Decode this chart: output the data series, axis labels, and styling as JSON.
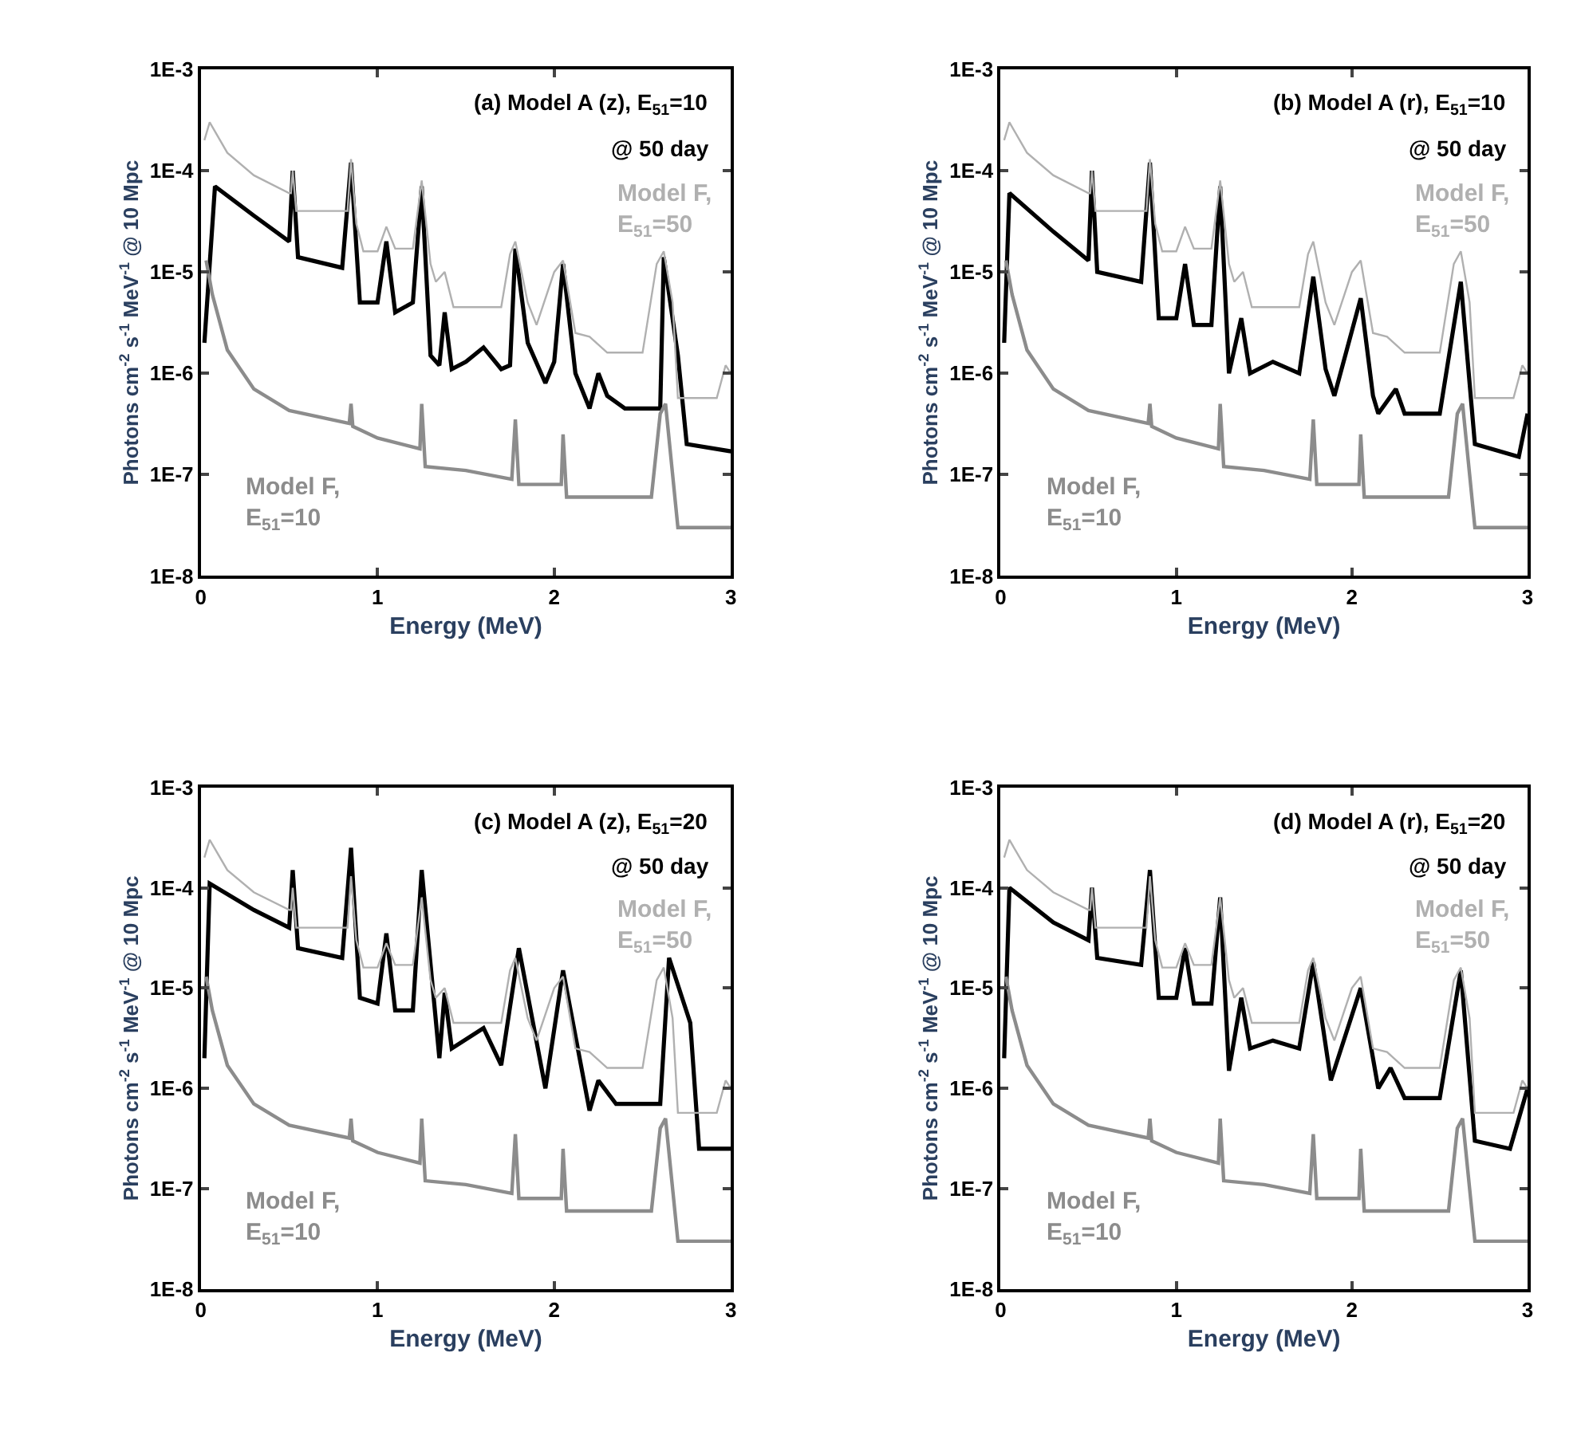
{
  "chart_data": [
    {
      "type": "line",
      "title": "(a) Model A (z), E$_{51}$=10",
      "subtitle": "@ 50 day",
      "xlabel": "Energy (MeV)",
      "ylabel": "Photons cm$^{-2}$ s$^{-1}$ MeV$^{-1}$ @ 10 Mpc",
      "log": "y",
      "grid": false,
      "legend": false,
      "marker": "none",
      "line_style": "solid",
      "xlim": [
        0,
        3
      ],
      "xticks": [
        0,
        1,
        2,
        3
      ],
      "ylim": [
        1e-08,
        0.001
      ],
      "yticks": [
        {
          "value": 1e-08,
          "label": "1E-8"
        },
        {
          "value": 1e-07,
          "label": "1E-7"
        },
        {
          "value": 1e-06,
          "label": "1E-6"
        },
        {
          "value": 1e-05,
          "label": "1E-5"
        },
        {
          "value": 0.0001,
          "label": "1E-4"
        },
        {
          "value": 0.001,
          "label": "1E-3"
        }
      ],
      "series": [
        {
          "color": "#000000",
          "x": [
            0.02,
            0.08,
            0.3,
            0.5,
            0.52,
            0.55,
            0.8,
            0.85,
            0.9,
            1.0,
            1.05,
            1.1,
            1.2,
            1.25,
            1.3,
            1.35,
            1.38,
            1.42,
            1.5,
            1.6,
            1.7,
            1.75,
            1.78,
            1.85,
            1.95,
            2.0,
            2.05,
            2.12,
            2.2,
            2.25,
            2.3,
            2.4,
            2.6,
            2.62,
            2.7,
            2.75,
            3.0
          ],
          "values": [
            2e-06,
            7e-05,
            3.6e-05,
            2e-05,
            0.0001,
            1.4e-05,
            1.1e-05,
            0.00012,
            5e-06,
            5e-06,
            2e-05,
            4e-06,
            5e-06,
            7e-05,
            1.5e-06,
            1.2e-06,
            4e-06,
            1.1e-06,
            1.3e-06,
            1.8e-06,
            1.1e-06,
            1.2e-06,
            1.7e-05,
            2e-06,
            8e-07,
            1.3e-06,
            1.2e-05,
            1e-06,
            4.5e-07,
            1e-06,
            6e-07,
            4.5e-07,
            4.5e-07,
            1.4e-05,
            1.5e-06,
            2e-07,
            1.7e-07
          ]
        },
        {
          "name": "Model F, E$_{51}$=50",
          "color": "#b0b0b0",
          "x": [
            0.02,
            0.05,
            0.15,
            0.3,
            0.5,
            0.51,
            0.52,
            0.54,
            0.8,
            0.83,
            0.85,
            0.88,
            0.92,
            1.0,
            1.05,
            1.1,
            1.2,
            1.25,
            1.3,
            1.33,
            1.38,
            1.43,
            1.7,
            1.75,
            1.78,
            1.85,
            1.9,
            2.0,
            2.05,
            2.12,
            2.2,
            2.3,
            2.5,
            2.58,
            2.62,
            2.67,
            2.7,
            2.92,
            2.97,
            3.0
          ],
          "values": [
            0.0002,
            0.0003,
            0.00015,
            9e-05,
            6e-05,
            6e-05,
            0.0001,
            4e-05,
            4e-05,
            4e-05,
            0.00013,
            3e-05,
            1.6e-05,
            1.6e-05,
            2.8e-05,
            1.7e-05,
            1.7e-05,
            8e-05,
            1.2e-05,
            8e-06,
            1e-05,
            4.5e-06,
            4.5e-06,
            1.5e-05,
            2e-05,
            5e-06,
            3e-06,
            1e-05,
            1.3e-05,
            2.5e-06,
            2.3e-06,
            1.6e-06,
            1.6e-06,
            1.2e-05,
            1.6e-05,
            5e-06,
            5.7e-07,
            5.7e-07,
            1.2e-06,
            1e-06
          ]
        },
        {
          "name": "Model F, E$_{51}$=10",
          "color": "#8c8c8c",
          "x": [
            0.03,
            0.065,
            0.15,
            0.3,
            0.5,
            0.84,
            0.85,
            0.86,
            1.0,
            1.24,
            1.25,
            1.27,
            1.5,
            1.76,
            1.78,
            1.8,
            2.0,
            2.04,
            2.05,
            2.07,
            2.3,
            2.55,
            2.6,
            2.63,
            2.67,
            2.7,
            3.0
          ],
          "values": [
            1.3e-05,
            6e-06,
            1.7e-06,
            7e-07,
            4.3e-07,
            3.2e-07,
            5e-07,
            3e-07,
            2.3e-07,
            1.8e-07,
            5e-07,
            1.2e-07,
            1.1e-07,
            9e-08,
            3.5e-07,
            8e-08,
            8e-08,
            8e-08,
            2.5e-07,
            6e-08,
            6e-08,
            6e-08,
            4e-07,
            5e-07,
            1e-07,
            3e-08,
            3e-08
          ]
        }
      ]
    },
    {
      "type": "line",
      "title": "(b) Model A (r), E$_{51}$=10",
      "subtitle": "@ 50 day",
      "xlabel": "Energy (MeV)",
      "ylabel": "Photons cm$^{-2}$ s$^{-1}$ MeV$^{-1}$ @ 10 Mpc",
      "log": "y",
      "grid": false,
      "legend": false,
      "marker": "none",
      "line_style": "solid",
      "xlim": [
        0,
        3
      ],
      "xticks": [
        0,
        1,
        2,
        3
      ],
      "ylim": [
        1e-08,
        0.001
      ],
      "yticks": [
        {
          "value": 1e-08,
          "label": "1E-8"
        },
        {
          "value": 1e-07,
          "label": "1E-7"
        },
        {
          "value": 1e-06,
          "label": "1E-6"
        },
        {
          "value": 1e-05,
          "label": "1E-5"
        },
        {
          "value": 0.0001,
          "label": "1E-4"
        },
        {
          "value": 0.001,
          "label": "1E-3"
        }
      ],
      "series": [
        {
          "color": "#000000",
          "x": [
            0.02,
            0.05,
            0.3,
            0.5,
            0.52,
            0.55,
            0.8,
            0.85,
            0.9,
            1.0,
            1.05,
            1.1,
            1.2,
            1.25,
            1.3,
            1.37,
            1.42,
            1.55,
            1.7,
            1.78,
            1.85,
            1.9,
            2.05,
            2.12,
            2.15,
            2.25,
            2.3,
            2.5,
            2.62,
            2.7,
            2.95,
            3.0
          ],
          "values": [
            2e-06,
            6e-05,
            2.5e-05,
            1.3e-05,
            0.0001,
            1e-05,
            8e-06,
            0.00012,
            3.5e-06,
            3.5e-06,
            1.2e-05,
            3e-06,
            3e-06,
            7e-05,
            1e-06,
            3.5e-06,
            1e-06,
            1.3e-06,
            1e-06,
            9e-06,
            1.1e-06,
            6e-07,
            5.5e-06,
            6e-07,
            4e-07,
            7e-07,
            4e-07,
            4e-07,
            8e-06,
            2e-07,
            1.5e-07,
            4e-07
          ]
        },
        {
          "name": "Model F, E$_{51}$=50",
          "color": "#b0b0b0",
          "x": [
            0.02,
            0.05,
            0.15,
            0.3,
            0.5,
            0.51,
            0.52,
            0.54,
            0.8,
            0.83,
            0.85,
            0.88,
            0.92,
            1.0,
            1.05,
            1.1,
            1.2,
            1.25,
            1.3,
            1.33,
            1.38,
            1.43,
            1.7,
            1.75,
            1.78,
            1.85,
            1.9,
            2.0,
            2.05,
            2.12,
            2.2,
            2.3,
            2.5,
            2.58,
            2.62,
            2.67,
            2.7,
            2.92,
            2.97,
            3.0
          ],
          "values": [
            0.0002,
            0.0003,
            0.00015,
            9e-05,
            6e-05,
            6e-05,
            0.0001,
            4e-05,
            4e-05,
            4e-05,
            0.00013,
            3e-05,
            1.6e-05,
            1.6e-05,
            2.8e-05,
            1.7e-05,
            1.7e-05,
            8e-05,
            1.2e-05,
            8e-06,
            1e-05,
            4.5e-06,
            4.5e-06,
            1.5e-05,
            2e-05,
            5e-06,
            3e-06,
            1e-05,
            1.3e-05,
            2.5e-06,
            2.3e-06,
            1.6e-06,
            1.6e-06,
            1.2e-05,
            1.6e-05,
            5e-06,
            5.7e-07,
            5.7e-07,
            1.2e-06,
            1e-06
          ]
        },
        {
          "name": "Model F, E$_{51}$=10",
          "color": "#8c8c8c",
          "x": [
            0.03,
            0.065,
            0.15,
            0.3,
            0.5,
            0.84,
            0.85,
            0.86,
            1.0,
            1.24,
            1.25,
            1.27,
            1.5,
            1.76,
            1.78,
            1.8,
            2.0,
            2.04,
            2.05,
            2.07,
            2.3,
            2.55,
            2.6,
            2.63,
            2.67,
            2.7,
            3.0
          ],
          "values": [
            1.3e-05,
            6e-06,
            1.7e-06,
            7e-07,
            4.3e-07,
            3.2e-07,
            5e-07,
            3e-07,
            2.3e-07,
            1.8e-07,
            5e-07,
            1.2e-07,
            1.1e-07,
            9e-08,
            3.5e-07,
            8e-08,
            8e-08,
            8e-08,
            2.5e-07,
            6e-08,
            6e-08,
            6e-08,
            4e-07,
            5e-07,
            1e-07,
            3e-08,
            3e-08
          ]
        }
      ]
    },
    {
      "type": "line",
      "title": "(c) Model A (z), E$_{51}$=20",
      "subtitle": "@ 50 day",
      "xlabel": "Energy (MeV)",
      "ylabel": "Photons cm$^{-2}$ s$^{-1}$ MeV$^{-1}$ @ 10 Mpc",
      "log": "y",
      "grid": false,
      "legend": false,
      "marker": "none",
      "line_style": "solid",
      "xlim": [
        0,
        3
      ],
      "xticks": [
        0,
        1,
        2,
        3
      ],
      "ylim": [
        1e-08,
        0.001
      ],
      "yticks": [
        {
          "value": 1e-08,
          "label": "1E-8"
        },
        {
          "value": 1e-07,
          "label": "1E-7"
        },
        {
          "value": 1e-06,
          "label": "1E-6"
        },
        {
          "value": 1e-05,
          "label": "1E-5"
        },
        {
          "value": 0.0001,
          "label": "1E-4"
        },
        {
          "value": 0.001,
          "label": "1E-3"
        }
      ],
      "series": [
        {
          "color": "#000000",
          "x": [
            0.02,
            0.05,
            0.3,
            0.5,
            0.52,
            0.55,
            0.8,
            0.85,
            0.9,
            1.0,
            1.05,
            1.1,
            1.2,
            1.25,
            1.35,
            1.38,
            1.42,
            1.6,
            1.7,
            1.8,
            1.95,
            2.05,
            2.2,
            2.25,
            2.35,
            2.6,
            2.65,
            2.77,
            2.82,
            3.0
          ],
          "values": [
            2e-06,
            0.00011,
            6e-05,
            4e-05,
            0.00015,
            2.5e-05,
            2e-05,
            0.00025,
            8e-06,
            7e-06,
            3.5e-05,
            6e-06,
            6e-06,
            0.00015,
            2e-06,
            9e-06,
            2.5e-06,
            4e-06,
            1.7e-06,
            2.5e-05,
            1e-06,
            1.5e-05,
            6e-07,
            1.2e-06,
            7e-07,
            7e-07,
            2e-05,
            4.5e-06,
            2.5e-07,
            2.5e-07
          ]
        },
        {
          "name": "Model F, E$_{51}$=50",
          "color": "#b0b0b0",
          "x": [
            0.02,
            0.05,
            0.15,
            0.3,
            0.5,
            0.51,
            0.52,
            0.54,
            0.8,
            0.83,
            0.85,
            0.88,
            0.92,
            1.0,
            1.05,
            1.1,
            1.2,
            1.25,
            1.3,
            1.33,
            1.38,
            1.43,
            1.7,
            1.75,
            1.78,
            1.85,
            1.9,
            2.0,
            2.05,
            2.12,
            2.2,
            2.3,
            2.5,
            2.58,
            2.62,
            2.67,
            2.7,
            2.92,
            2.97,
            3.0
          ],
          "values": [
            0.0002,
            0.0003,
            0.00015,
            9e-05,
            6e-05,
            6e-05,
            0.0001,
            4e-05,
            4e-05,
            4e-05,
            0.00013,
            3e-05,
            1.6e-05,
            1.6e-05,
            2.8e-05,
            1.7e-05,
            1.7e-05,
            8e-05,
            1.2e-05,
            8e-06,
            1e-05,
            4.5e-06,
            4.5e-06,
            1.5e-05,
            2e-05,
            5e-06,
            3e-06,
            1e-05,
            1.3e-05,
            2.5e-06,
            2.3e-06,
            1.6e-06,
            1.6e-06,
            1.2e-05,
            1.6e-05,
            5e-06,
            5.7e-07,
            5.7e-07,
            1.2e-06,
            1e-06
          ]
        },
        {
          "name": "Model F, E$_{51}$=10",
          "color": "#8c8c8c",
          "x": [
            0.03,
            0.065,
            0.15,
            0.3,
            0.5,
            0.84,
            0.85,
            0.86,
            1.0,
            1.24,
            1.25,
            1.27,
            1.5,
            1.76,
            1.78,
            1.8,
            2.0,
            2.04,
            2.05,
            2.07,
            2.3,
            2.55,
            2.6,
            2.63,
            2.67,
            2.7,
            3.0
          ],
          "values": [
            1.3e-05,
            6e-06,
            1.7e-06,
            7e-07,
            4.3e-07,
            3.2e-07,
            5e-07,
            3e-07,
            2.3e-07,
            1.8e-07,
            5e-07,
            1.2e-07,
            1.1e-07,
            9e-08,
            3.5e-07,
            8e-08,
            8e-08,
            8e-08,
            2.5e-07,
            6e-08,
            6e-08,
            6e-08,
            4e-07,
            5e-07,
            1e-07,
            3e-08,
            3e-08
          ]
        }
      ]
    },
    {
      "type": "line",
      "title": "(d) Model A (r), E$_{51}$=20",
      "subtitle": "@ 50 day",
      "xlabel": "Energy (MeV)",
      "ylabel": "Photons cm$^{-2}$ s$^{-1}$ MeV$^{-1}$ @ 10 Mpc",
      "log": "y",
      "grid": false,
      "legend": false,
      "marker": "none",
      "line_style": "solid",
      "xlim": [
        0,
        3
      ],
      "xticks": [
        0,
        1,
        2,
        3
      ],
      "ylim": [
        1e-08,
        0.001
      ],
      "yticks": [
        {
          "value": 1e-08,
          "label": "1E-8"
        },
        {
          "value": 1e-07,
          "label": "1E-7"
        },
        {
          "value": 1e-06,
          "label": "1E-6"
        },
        {
          "value": 1e-05,
          "label": "1E-5"
        },
        {
          "value": 0.0001,
          "label": "1E-4"
        },
        {
          "value": 0.001,
          "label": "1E-3"
        }
      ],
      "series": [
        {
          "color": "#000000",
          "x": [
            0.02,
            0.05,
            0.3,
            0.5,
            0.52,
            0.55,
            0.8,
            0.85,
            0.9,
            1.0,
            1.05,
            1.1,
            1.2,
            1.25,
            1.3,
            1.37,
            1.42,
            1.55,
            1.7,
            1.78,
            1.88,
            2.05,
            2.15,
            2.22,
            2.3,
            2.5,
            2.62,
            2.7,
            2.9,
            3.0
          ],
          "values": [
            2e-06,
            0.0001,
            4.5e-05,
            3e-05,
            0.0001,
            2e-05,
            1.7e-05,
            0.00015,
            8e-06,
            8e-06,
            2.5e-05,
            7e-06,
            7e-06,
            8e-05,
            1.5e-06,
            8e-06,
            2.5e-06,
            3e-06,
            2.5e-06,
            1.8e-05,
            1.2e-06,
            1e-05,
            1e-06,
            1.6e-06,
            8e-07,
            8e-07,
            1.5e-05,
            3e-07,
            2.5e-07,
            1e-06
          ]
        },
        {
          "name": "Model F, E$_{51}$=50",
          "color": "#b0b0b0",
          "x": [
            0.02,
            0.05,
            0.15,
            0.3,
            0.5,
            0.51,
            0.52,
            0.54,
            0.8,
            0.83,
            0.85,
            0.88,
            0.92,
            1.0,
            1.05,
            1.1,
            1.2,
            1.25,
            1.3,
            1.33,
            1.38,
            1.43,
            1.7,
            1.75,
            1.78,
            1.85,
            1.9,
            2.0,
            2.05,
            2.12,
            2.2,
            2.3,
            2.5,
            2.58,
            2.62,
            2.67,
            2.7,
            2.92,
            2.97,
            3.0
          ],
          "values": [
            0.0002,
            0.0003,
            0.00015,
            9e-05,
            6e-05,
            6e-05,
            0.0001,
            4e-05,
            4e-05,
            4e-05,
            0.00013,
            3e-05,
            1.6e-05,
            1.6e-05,
            2.8e-05,
            1.7e-05,
            1.7e-05,
            8e-05,
            1.2e-05,
            8e-06,
            1e-05,
            4.5e-06,
            4.5e-06,
            1.5e-05,
            2e-05,
            5e-06,
            3e-06,
            1e-05,
            1.3e-05,
            2.5e-06,
            2.3e-06,
            1.6e-06,
            1.6e-06,
            1.2e-05,
            1.6e-05,
            5e-06,
            5.7e-07,
            5.7e-07,
            1.2e-06,
            1e-06
          ]
        },
        {
          "name": "Model F, E$_{51}$=10",
          "color": "#8c8c8c",
          "x": [
            0.03,
            0.065,
            0.15,
            0.3,
            0.5,
            0.84,
            0.85,
            0.86,
            1.0,
            1.24,
            1.25,
            1.27,
            1.5,
            1.76,
            1.78,
            1.8,
            2.0,
            2.04,
            2.05,
            2.07,
            2.3,
            2.55,
            2.6,
            2.63,
            2.67,
            2.7,
            3.0
          ],
          "values": [
            1.3e-05,
            6e-06,
            1.7e-06,
            7e-07,
            4.3e-07,
            3.2e-07,
            5e-07,
            3e-07,
            2.3e-07,
            1.8e-07,
            5e-07,
            1.2e-07,
            1.1e-07,
            9e-08,
            3.5e-07,
            8e-08,
            8e-08,
            8e-08,
            2.5e-07,
            6e-08,
            6e-08,
            6e-08,
            4e-07,
            5e-07,
            1e-07,
            3e-08,
            3e-08
          ]
        }
      ]
    }
  ]
}
